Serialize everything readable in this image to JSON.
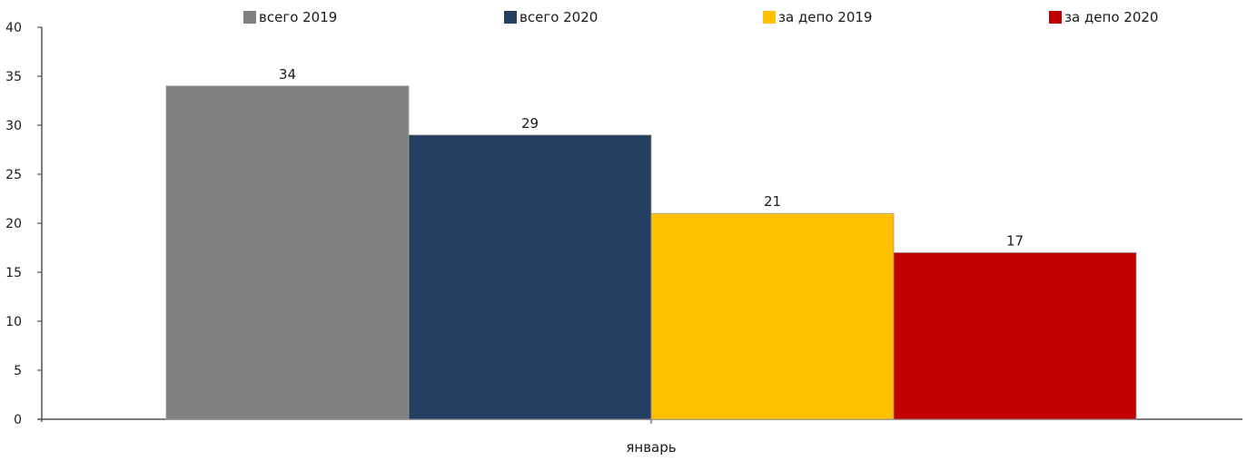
{
  "chart_data": {
    "type": "bar",
    "categories": [
      "январь"
    ],
    "series": [
      {
        "name": "всего 2019",
        "values": [
          34
        ],
        "color": "#808080"
      },
      {
        "name": "всего 2020",
        "values": [
          29
        ],
        "color": "#243f60"
      },
      {
        "name": "за депо 2019",
        "values": [
          21
        ],
        "color": "#ffc000"
      },
      {
        "name": "за депо 2020",
        "values": [
          17
        ],
        "color": "#c00000"
      }
    ],
    "ylim": [
      0,
      40
    ],
    "yticks": [
      0,
      5,
      10,
      15,
      20,
      25,
      30,
      35,
      40
    ],
    "data_labels": true,
    "grid": false,
    "legend": "top"
  }
}
